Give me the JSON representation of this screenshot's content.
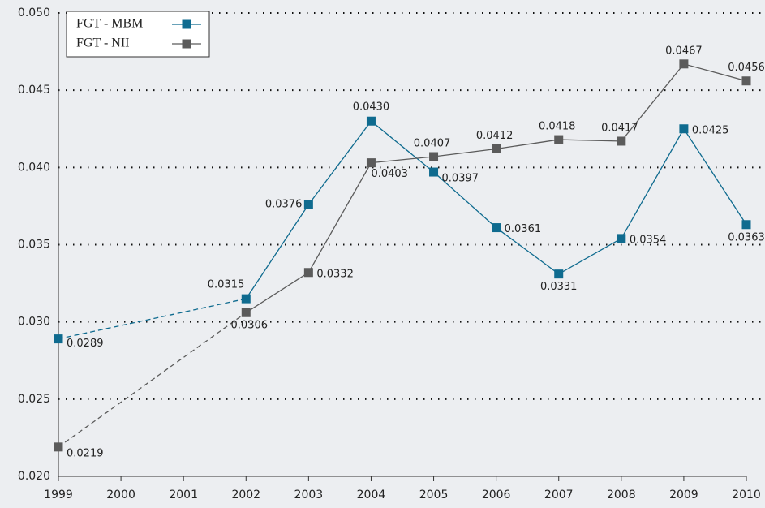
{
  "chart_data": {
    "type": "line",
    "x": [
      1999,
      2002,
      2003,
      2004,
      2005,
      2006,
      2007,
      2008,
      2009,
      2010
    ],
    "series": [
      {
        "name": "FGT - MBM",
        "color": "#0f6b8f",
        "values": [
          0.0289,
          0.0315,
          0.0376,
          0.043,
          0.0397,
          0.0361,
          0.0331,
          0.0354,
          0.0425,
          0.0363
        ],
        "value_labels": [
          "0.0289",
          "0.0315",
          "0.0376",
          "0.0430",
          "0.0397",
          "0.0361",
          "0.0331",
          "0.0354",
          "0.0425",
          "0.0363"
        ]
      },
      {
        "name": "FGT - NII",
        "color": "#5b5b5b",
        "values": [
          0.0219,
          0.0306,
          0.0332,
          0.0403,
          0.0407,
          0.0412,
          0.0418,
          0.0417,
          0.0467,
          0.0456
        ],
        "value_labels": [
          "0.0219",
          "0.0306",
          "0.0332",
          "0.0403",
          "0.0407",
          "0.0412",
          "0.0418",
          "0.0417",
          "0.0467",
          "0.0456"
        ]
      }
    ],
    "xlim": [
      1999,
      2010
    ],
    "xticks": [
      1999,
      2000,
      2001,
      2002,
      2003,
      2004,
      2005,
      2006,
      2007,
      2008,
      2009,
      2010
    ],
    "ylim": [
      0.02,
      0.05
    ],
    "yticks": [
      {
        "value": 0.02,
        "label": "0.020"
      },
      {
        "value": 0.025,
        "label": "0.025"
      },
      {
        "value": 0.03,
        "label": "0.030"
      },
      {
        "value": 0.035,
        "label": "0.035"
      },
      {
        "value": 0.04,
        "label": "0.040"
      },
      {
        "value": 0.045,
        "label": "0.045"
      },
      {
        "value": 0.05,
        "label": "0.050"
      }
    ],
    "grid": true,
    "legend": "upper left"
  }
}
